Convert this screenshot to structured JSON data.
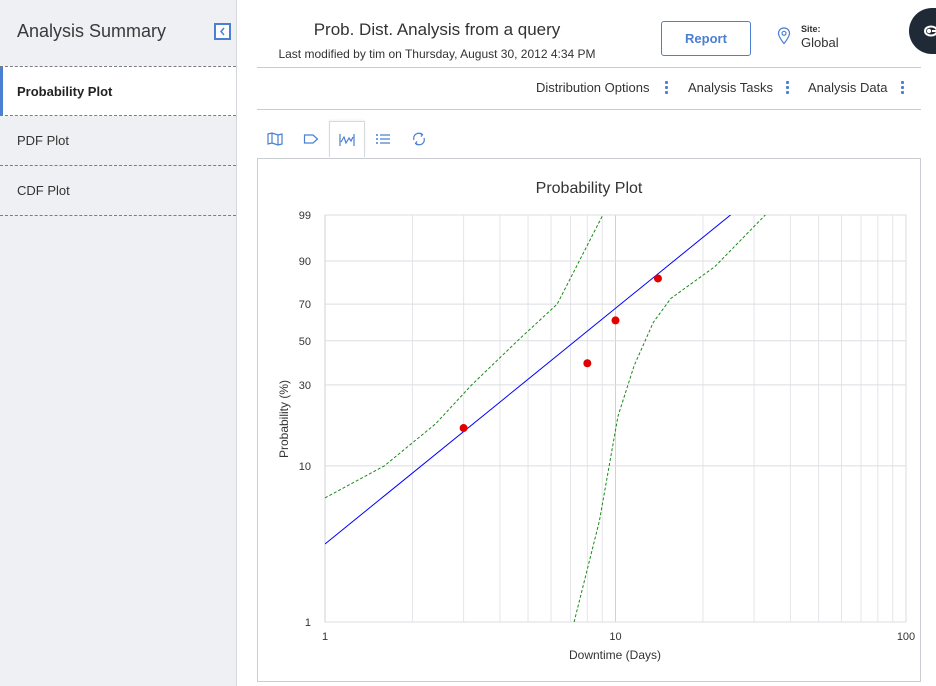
{
  "sidebar": {
    "title": "Analysis Summary",
    "items": [
      {
        "label": "Probability Plot"
      },
      {
        "label": "PDF Plot"
      },
      {
        "label": "CDF Plot"
      }
    ]
  },
  "header": {
    "title": "Prob. Dist. Analysis from a query",
    "subtitle": "Last modified by tim on Thursday, August 30, 2012 4:34 PM",
    "report_label": "Report",
    "site_label": "Site:",
    "site_value": "Global"
  },
  "menu": {
    "distribution_options": "Distribution Options",
    "analysis_tasks": "Analysis Tasks",
    "analysis_data": "Analysis Data"
  },
  "colors": {
    "accent": "#4a7fd1",
    "fit_line": "#0000ff",
    "confidence": "#1a8a1a",
    "points": "#e00000"
  },
  "toolbar_icons": [
    "map-icon",
    "tag-icon",
    "plot-icon",
    "list-icon",
    "refresh-icon"
  ],
  "chart_data": {
    "type": "scatter",
    "title": "Probability Plot",
    "xlabel": "Downtime (Days)",
    "ylabel": "Probability (%)",
    "x_scale": "log",
    "y_scale": "weibull-probability",
    "xlim": [
      1,
      100
    ],
    "ylim": [
      1,
      99
    ],
    "x_ticks": [
      1,
      10,
      100
    ],
    "y_ticks": [
      1,
      10,
      30,
      50,
      70,
      90,
      99
    ],
    "grid": true,
    "points": [
      {
        "x": 3.0,
        "y": 17
      },
      {
        "x": 8.0,
        "y": 39
      },
      {
        "x": 10.0,
        "y": 61
      },
      {
        "x": 14.0,
        "y": 83
      }
    ],
    "fit_line": [
      {
        "x": 1.0,
        "y": 3.2
      },
      {
        "x": 28.0,
        "y": 99.6
      }
    ],
    "upper_bound": [
      {
        "x": 1.0,
        "y": 6.3
      },
      {
        "x": 1.6,
        "y": 10
      },
      {
        "x": 2.4,
        "y": 18
      },
      {
        "x": 3.2,
        "y": 30
      },
      {
        "x": 4.6,
        "y": 50
      },
      {
        "x": 6.3,
        "y": 70
      },
      {
        "x": 9.5,
        "y": 99.6
      }
    ],
    "lower_bound": [
      {
        "x": 7.2,
        "y": 1.0
      },
      {
        "x": 8.8,
        "y": 4.5
      },
      {
        "x": 10.2,
        "y": 20
      },
      {
        "x": 11.6,
        "y": 38
      },
      {
        "x": 13.5,
        "y": 60
      },
      {
        "x": 15.5,
        "y": 73
      },
      {
        "x": 22.0,
        "y": 88
      },
      {
        "x": 36.0,
        "y": 99.6
      }
    ]
  }
}
